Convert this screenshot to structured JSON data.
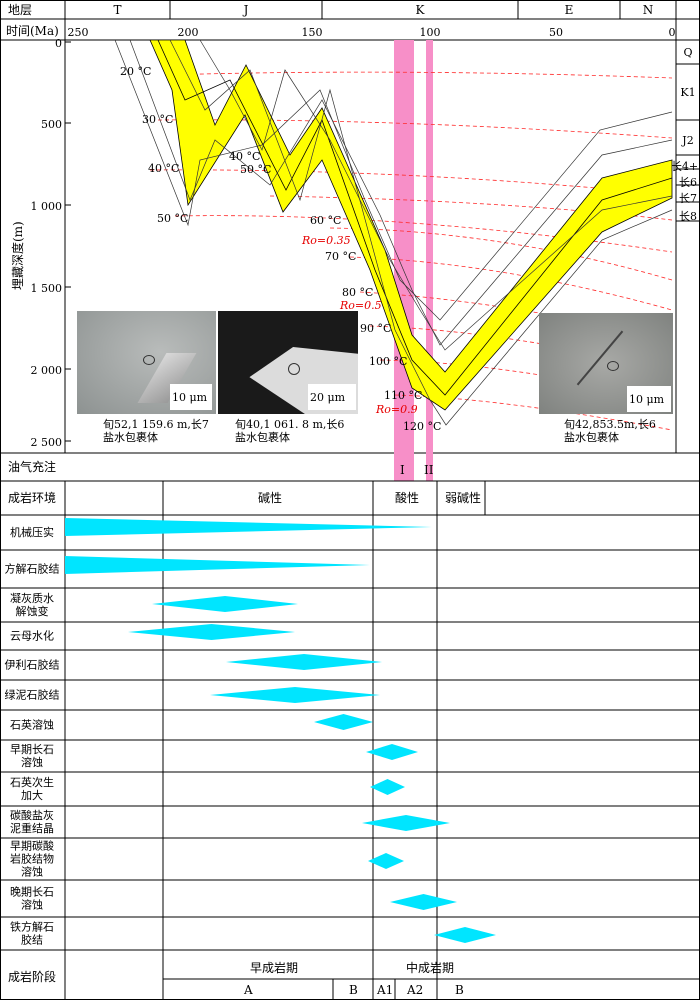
{
  "header": {
    "strata_label": "地层",
    "time_label": "时间(Ma)",
    "periods": [
      "T",
      "J",
      "K",
      "E",
      "N"
    ],
    "ages": [
      "250",
      "200",
      "150",
      "100",
      "50",
      "0"
    ]
  },
  "axis": {
    "ylabel": "埋藏深度(m)",
    "depth_ticks": [
      "0",
      "500",
      "1 000",
      "1 500",
      "2 000",
      "2 500"
    ],
    "strata_units": [
      "Q",
      "K1",
      "J2",
      "长4+5",
      "长6",
      "长7",
      "长8"
    ]
  },
  "isotherms": {
    "left": [
      "20 °C",
      "30 °C",
      "40 °C",
      "50 °C"
    ],
    "middle": [
      "40 °C",
      "50 °C"
    ],
    "right": [
      "60 °C",
      "70 °C",
      "80 °C",
      "90 °C",
      "100 °C",
      "110 °C",
      "120 °C"
    ],
    "ro": [
      "Ro=0.35",
      "Ro=0.5",
      "Ro=0.9"
    ]
  },
  "photos": [
    {
      "caption1": "旬52,1 159.6 m,长7",
      "caption2": "盐水包裹体",
      "scale": "10 μm"
    },
    {
      "caption1": "旬40,1 061. 8 m,长6",
      "caption2": "盐水包裹体",
      "scale": "20 μm"
    },
    {
      "caption1": "旬42,853.5m,长6",
      "caption2": "盐水包裹体",
      "scale": "10 μm"
    }
  ],
  "charging": {
    "label": "油气充注",
    "stages": [
      "I",
      "II"
    ]
  },
  "environment": {
    "label": "成岩环境",
    "alkaline": "碱性",
    "acidic": "酸性",
    "weak_alkaline": "弱碱性"
  },
  "processes": [
    {
      "l1": "机械压实",
      "l2": ""
    },
    {
      "l1": "方解石胶结",
      "l2": ""
    },
    {
      "l1": "凝灰质水",
      "l2": "解蚀变"
    },
    {
      "l1": "云母水化",
      "l2": ""
    },
    {
      "l1": "伊利石胶结",
      "l2": ""
    },
    {
      "l1": "绿泥石胶结",
      "l2": ""
    },
    {
      "l1": "石英溶蚀",
      "l2": ""
    },
    {
      "l1": "早期长石",
      "l2": "溶蚀"
    },
    {
      "l1": "石英次生",
      "l2": "加大"
    },
    {
      "l1": "碳酸盐灰",
      "l2": "泥重结晶"
    },
    {
      "l1": "早期碳酸",
      "l2": "岩胶结物",
      "l3": "溶蚀"
    },
    {
      "l1": "晚期长石",
      "l2": "溶蚀"
    },
    {
      "l1": "铁方解石",
      "l2": "胶结"
    }
  ],
  "stage": {
    "label": "成岩阶段",
    "early": "早成岩期",
    "middle": "中成岩期",
    "subs": [
      "A",
      "B",
      "A1",
      "A2",
      "B"
    ]
  },
  "colors": {
    "burial_band": "#ffff00",
    "charge": "#f78fc8",
    "process": "#00e5ff",
    "isotherm": "#ff0000"
  }
}
